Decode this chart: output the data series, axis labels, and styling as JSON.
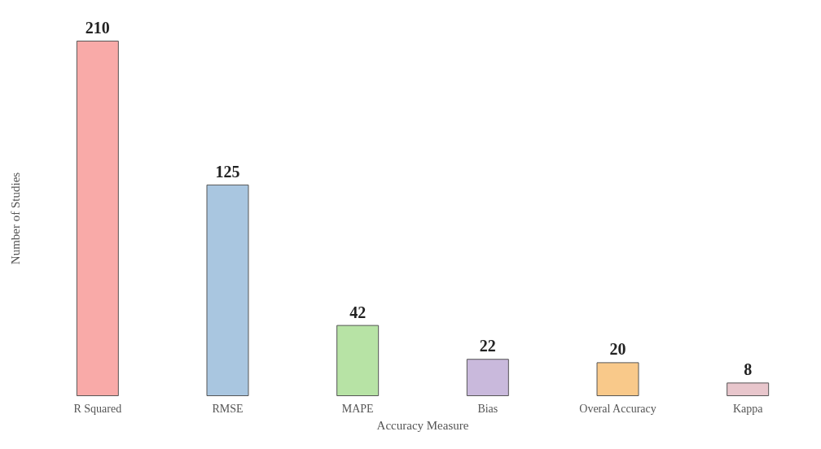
{
  "chart_data": {
    "type": "bar",
    "xlabel": "Accuracy Measure",
    "ylabel": "Number of Studies",
    "categories": [
      "R Squared",
      "RMSE",
      "MAPE",
      "Bias",
      "Overal Accuracy",
      "Kappa"
    ],
    "values": [
      210,
      125,
      42,
      22,
      20,
      8
    ],
    "colors": [
      "#f9aaa8",
      "#a9c6e0",
      "#b7e3a5",
      "#c9b9dc",
      "#f9c98a",
      "#e8c6cc"
    ],
    "ylim": [
      0,
      210
    ],
    "data_labels": true
  }
}
